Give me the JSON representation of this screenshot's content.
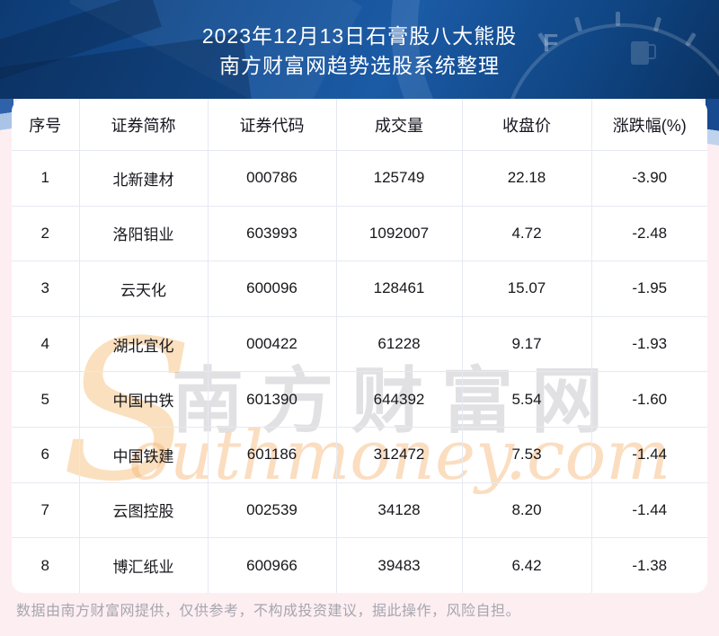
{
  "header": {
    "title_line1": "2023年12月13日石膏股八大熊股",
    "title_line2": "南方财富网趋势选股系统整理"
  },
  "table": {
    "columns": [
      "序号",
      "证券简称",
      "证券代码",
      "成交量",
      "收盘价",
      "涨跌幅(%)"
    ],
    "rows": [
      [
        "1",
        "北新建材",
        "000786",
        "125749",
        "22.18",
        "-3.90"
      ],
      [
        "2",
        "洛阳钼业",
        "603993",
        "1092007",
        "4.72",
        "-2.48"
      ],
      [
        "3",
        "云天化",
        "600096",
        "128461",
        "15.07",
        "-1.95"
      ],
      [
        "4",
        "湖北宜化",
        "000422",
        "61228",
        "9.17",
        "-1.93"
      ],
      [
        "5",
        "中国中铁",
        "601390",
        "644392",
        "5.54",
        "-1.60"
      ],
      [
        "6",
        "中国铁建",
        "601186",
        "312472",
        "7.53",
        "-1.44"
      ],
      [
        "7",
        "云图控股",
        "002539",
        "34128",
        "8.20",
        "-1.44"
      ],
      [
        "8",
        "博汇纸业",
        "600966",
        "39483",
        "6.42",
        "-1.38"
      ]
    ]
  },
  "watermark": {
    "big_letter": "S",
    "cn": "南方财富网",
    "en": "outhmoney.com"
  },
  "footer": {
    "disclaimer": "数据由南方财富网提供，仅供参考，不构成投资建议，据此操作，风险自担。"
  },
  "gauge": {
    "f_label": "F"
  },
  "colors": {
    "header_bg": "#11427f",
    "page_bg": "#fdeef2",
    "table_border": "#e6e9f2",
    "title_text": "#ffffff",
    "cell_text": "#17171c",
    "footer_text": "#a6a6ad",
    "watermark_orange": "#f6b77b",
    "watermark_gray": "#8c8c8c"
  },
  "chart_data": {
    "type": "table",
    "title": "2023年12月13日石膏股八大熊股",
    "subtitle": "南方财富网趋势选股系统整理",
    "columns": [
      "序号",
      "证券简称",
      "证券代码",
      "成交量",
      "收盘价",
      "涨跌幅(%)"
    ],
    "rows": [
      [
        1,
        "北新建材",
        "000786",
        125749,
        22.18,
        -3.9
      ],
      [
        2,
        "洛阳钼业",
        "603993",
        1092007,
        4.72,
        -2.48
      ],
      [
        3,
        "云天化",
        "600096",
        128461,
        15.07,
        -1.95
      ],
      [
        4,
        "湖北宜化",
        "000422",
        61228,
        9.17,
        -1.93
      ],
      [
        5,
        "中国中铁",
        "601390",
        644392,
        5.54,
        -1.6
      ],
      [
        6,
        "中国铁建",
        "601186",
        312472,
        7.53,
        -1.44
      ],
      [
        7,
        "云图控股",
        "002539",
        34128,
        8.2,
        -1.44
      ],
      [
        8,
        "博汇纸业",
        "600966",
        39483,
        6.42,
        -1.38
      ]
    ],
    "source_note": "数据由南方财富网提供，仅供参考，不构成投资建议，据此操作，风险自担。"
  }
}
